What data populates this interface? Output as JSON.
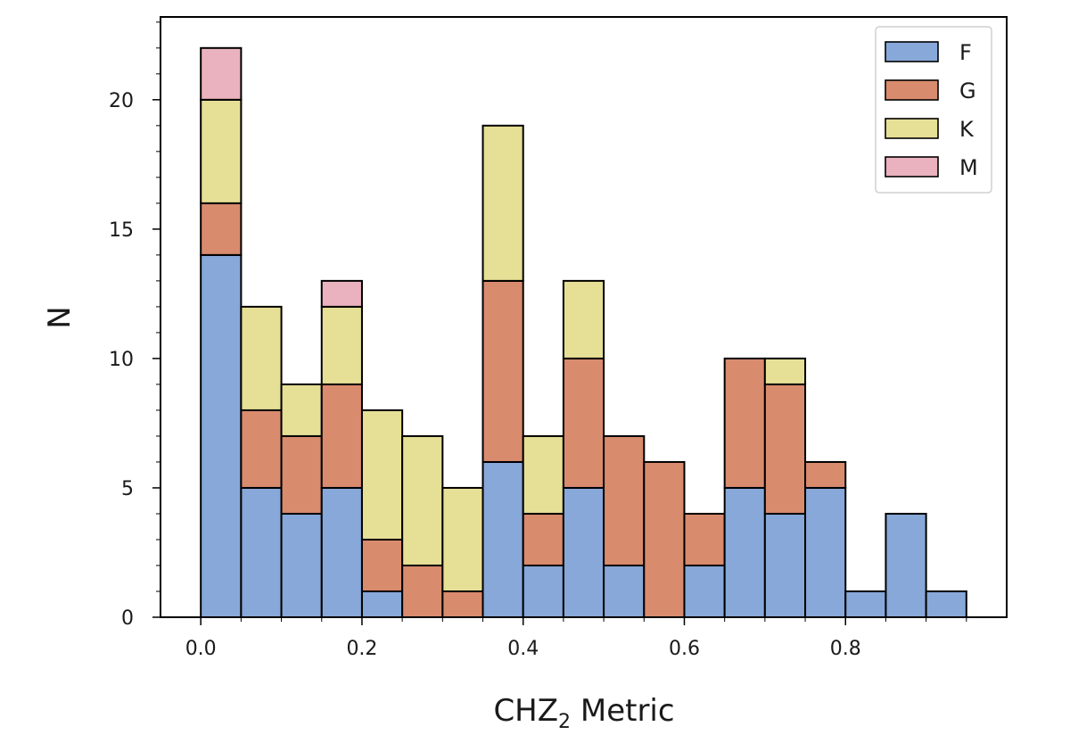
{
  "chart_data": {
    "type": "bar",
    "stacked": true,
    "histogram": true,
    "bin_edges": [
      0.0,
      0.05,
      0.1,
      0.15,
      0.2,
      0.25,
      0.3,
      0.35,
      0.4,
      0.45,
      0.5,
      0.55,
      0.6,
      0.65,
      0.7,
      0.75,
      0.8,
      0.85,
      0.9,
      0.95
    ],
    "xlabel": {
      "main": "CHZ",
      "sub": "2",
      "rest": " Metric"
    },
    "ylabel": "N",
    "xlim": [
      -0.05,
      1.0
    ],
    "ylim": [
      0,
      23.2
    ],
    "xticks": [
      0.0,
      0.2,
      0.4,
      0.6,
      0.8
    ],
    "xtick_labels": [
      "0.0",
      "0.2",
      "0.4",
      "0.6",
      "0.8"
    ],
    "yticks": [
      0,
      5,
      10,
      15,
      20
    ],
    "ytick_labels": [
      "0",
      "5",
      "10",
      "15",
      "20"
    ],
    "grid": false,
    "legend_position": "top-right",
    "series": [
      {
        "name": "F",
        "color": "#87a8d8",
        "values": [
          14,
          5,
          4,
          5,
          1,
          0,
          0,
          6,
          2,
          5,
          2,
          0,
          2,
          5,
          4,
          5,
          1,
          4,
          1
        ]
      },
      {
        "name": "G",
        "color": "#d98b6e",
        "values": [
          2,
          3,
          3,
          4,
          2,
          2,
          1,
          7,
          2,
          5,
          5,
          6,
          2,
          5,
          5,
          1,
          0,
          0,
          0
        ]
      },
      {
        "name": "K",
        "color": "#e6df96",
        "values": [
          4,
          4,
          2,
          3,
          5,
          5,
          4,
          6,
          3,
          3,
          0,
          0,
          0,
          0,
          1,
          0,
          0,
          0,
          0
        ]
      },
      {
        "name": "M",
        "color": "#eab2be",
        "values": [
          2,
          0,
          0,
          1,
          0,
          0,
          0,
          0,
          0,
          0,
          0,
          0,
          0,
          0,
          0,
          0,
          0,
          0,
          0
        ]
      }
    ]
  }
}
